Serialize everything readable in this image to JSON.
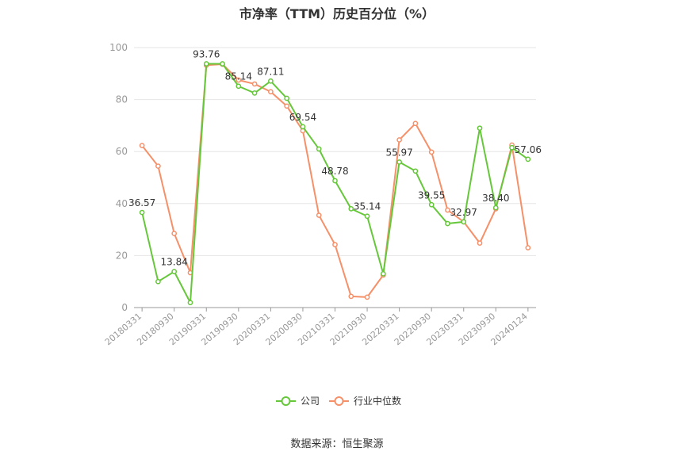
{
  "title": "市净率（TTM）历史百分位（%）",
  "source": "数据来源：恒生聚源",
  "colors": {
    "company": "#66c73b",
    "industry": "#f59069",
    "grid": "#e6e6e6",
    "axis": "#999999"
  },
  "chart_data": {
    "type": "line",
    "title": "市净率（TTM）历史百分位（%）",
    "xlabel": "",
    "ylabel": "",
    "ylim": [
      0,
      100
    ],
    "yticks": [
      0,
      20,
      40,
      60,
      80,
      100
    ],
    "grid": true,
    "legend": "bottom-center",
    "x_tick_labels": [
      "20180331",
      "20180930",
      "20190331",
      "20190930",
      "20200331",
      "20200930",
      "20210331",
      "20210930",
      "20220331",
      "20220930",
      "20230331",
      "20230930",
      "20240124"
    ],
    "x": [
      "20180331",
      "20180630",
      "20180930",
      "20181231",
      "20190331",
      "20190630",
      "20190930",
      "20191231",
      "20200331",
      "20200630",
      "20200930",
      "20201231",
      "20210331",
      "20210630",
      "20210930",
      "20211231",
      "20220331",
      "20220630",
      "20220930",
      "20221231",
      "20230331",
      "20230630",
      "20230930",
      "20231231",
      "20240124"
    ],
    "series": [
      {
        "name": "公司",
        "values": [
          36.57,
          10,
          13.84,
          1.9,
          93.76,
          93.76,
          85.14,
          82.5,
          87.11,
          80.5,
          69.54,
          61,
          48.78,
          38,
          35.14,
          13,
          55.97,
          52.5,
          39.55,
          32.3,
          32.97,
          69,
          38.4,
          61.5,
          57.06
        ],
        "labels": [
          "36.57",
          "",
          "13.84",
          "",
          "93.76",
          "",
          "85.14",
          "",
          "87.11",
          "",
          "69.54",
          "",
          "48.78",
          "",
          "35.14",
          "",
          "55.97",
          "",
          "39.55",
          "",
          "32.97",
          "",
          "38.40",
          "",
          "57.06"
        ]
      },
      {
        "name": "行业中位数",
        "values": [
          62.3,
          54.4,
          28.5,
          13.4,
          93.2,
          93.6,
          87.5,
          86,
          83,
          77.5,
          68,
          35.5,
          24.2,
          4.3,
          4,
          12.5,
          64.5,
          70.8,
          59.8,
          37.5,
          33,
          24.8,
          38,
          62.5,
          23
        ]
      }
    ]
  }
}
